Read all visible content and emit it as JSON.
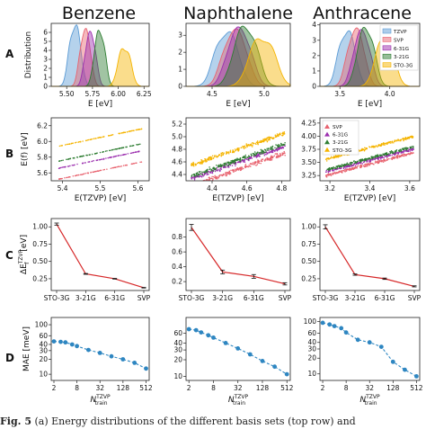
{
  "figure": {
    "columns": [
      "Benzene",
      "Naphthalene",
      "Anthracene"
    ],
    "row_labels": [
      "A",
      "B",
      "C",
      "D"
    ],
    "caption": {
      "lead": "Fig. 5",
      "text": "(a) Energy distributions of the different basis sets (top row) and"
    }
  },
  "colors": {
    "TZVP": "#5b9bd5",
    "SVP": "#e8636f",
    "6-31G": "#9b2fae",
    "3-21G": "#2e7d32",
    "STO-3G": "#f5b400",
    "mae": "#2e86c1",
    "delta": "#d62728"
  },
  "chart_data": [
    {
      "type": "area",
      "panel": "A",
      "molecule": "Benzene",
      "xlabel": "E [eV]",
      "ylabel": "Distribution",
      "xlim": [
        5.35,
        6.3
      ],
      "ylim": [
        0,
        7
      ],
      "xticks": [
        "5.50",
        "5.75",
        "6.00",
        "6.25"
      ],
      "yticks": [
        "0",
        "1",
        "2",
        "3",
        "4",
        "5",
        "6"
      ],
      "series": [
        {
          "name": "TZVP",
          "center": 5.58,
          "width": 0.06,
          "peak": 6.6
        },
        {
          "name": "SVP",
          "center": 5.68,
          "width": 0.055,
          "peak": 6.1
        },
        {
          "name": "6-31G",
          "center": 5.73,
          "width": 0.055,
          "peak": 5.8
        },
        {
          "name": "3-21G",
          "center": 5.82,
          "width": 0.055,
          "peak": 6.0
        },
        {
          "name": "STO-3G",
          "center": 6.06,
          "width": 0.065,
          "peak": 4.2
        }
      ]
    },
    {
      "type": "area",
      "panel": "A",
      "molecule": "Naphthalene",
      "xlabel": "E [eV]",
      "ylabel": "",
      "xlim": [
        4.25,
        5.25
      ],
      "ylim": [
        0,
        3.7
      ],
      "xticks": [
        "4.5",
        "5.0"
      ],
      "yticks": [
        "0",
        "1",
        "2",
        "3"
      ],
      "series": [
        {
          "name": "TZVP",
          "center": 4.64,
          "width": 0.12,
          "peak": 3.1
        },
        {
          "name": "SVP",
          "center": 4.72,
          "width": 0.12,
          "peak": 3.2
        },
        {
          "name": "6-31G",
          "center": 4.76,
          "width": 0.12,
          "peak": 3.3
        },
        {
          "name": "3-21G",
          "center": 4.82,
          "width": 0.12,
          "peak": 3.4
        },
        {
          "name": "STO-3G",
          "center": 4.98,
          "width": 0.13,
          "peak": 2.8
        }
      ]
    },
    {
      "type": "area",
      "panel": "A",
      "molecule": "Anthracene",
      "xlabel": "E [eV]",
      "ylabel": "",
      "xlim": [
        3.3,
        4.3
      ],
      "ylim": [
        0,
        4.1
      ],
      "xticks": [
        "3.5",
        "4.0"
      ],
      "yticks": [
        "0",
        "1",
        "2",
        "3",
        "4"
      ],
      "legend": "top-right",
      "series": [
        {
          "name": "TZVP",
          "center": 3.57,
          "width": 0.09,
          "peak": 3.5
        },
        {
          "name": "SVP",
          "center": 3.66,
          "width": 0.09,
          "peak": 3.6
        },
        {
          "name": "6-31G",
          "center": 3.72,
          "width": 0.09,
          "peak": 3.5
        },
        {
          "name": "3-21G",
          "center": 3.76,
          "width": 0.09,
          "peak": 3.7
        },
        {
          "name": "STO-3G",
          "center": 3.95,
          "width": 0.1,
          "peak": 3.0
        }
      ]
    },
    {
      "type": "scatter",
      "panel": "B",
      "molecule": "Benzene",
      "xlabel": "E(TZVP) [eV]",
      "ylabel": "E(f) [eV]",
      "xlim": [
        5.37,
        5.63
      ],
      "ylim": [
        5.5,
        6.3
      ],
      "xticks": [
        "5.4",
        "5.5",
        "5.6"
      ],
      "yticks": [
        "5.6",
        "5.8",
        "6.0",
        "6.2"
      ],
      "xrange": [
        5.39,
        5.61
      ],
      "spread": 0.004,
      "series": [
        {
          "name": "SVP",
          "slope": 1.0,
          "intercept": 0.13
        },
        {
          "name": "6-31G",
          "slope": 1.0,
          "intercept": 0.27
        },
        {
          "name": "3-21G",
          "slope": 1.0,
          "intercept": 0.36
        },
        {
          "name": "STO-3G",
          "slope": 1.0,
          "intercept": 0.55
        }
      ]
    },
    {
      "type": "scatter",
      "panel": "B",
      "molecule": "Naphthalene",
      "xlabel": "E(TZVP) [eV]",
      "ylabel": "",
      "xlim": [
        4.25,
        4.85
      ],
      "ylim": [
        4.3,
        5.3
      ],
      "xticks": [
        "4.4",
        "4.6",
        "4.8"
      ],
      "yticks": [
        "4.4",
        "4.6",
        "4.8",
        "5.0",
        "5.2"
      ],
      "xrange": [
        4.28,
        4.82
      ],
      "spread": 0.045,
      "series": [
        {
          "name": "SVP",
          "slope": 0.95,
          "intercept": 0.16
        },
        {
          "name": "6-31G",
          "slope": 0.95,
          "intercept": 0.27
        },
        {
          "name": "3-21G",
          "slope": 0.95,
          "intercept": 0.31
        },
        {
          "name": "STO-3G",
          "slope": 0.95,
          "intercept": 0.48
        }
      ]
    },
    {
      "type": "scatter",
      "panel": "B",
      "molecule": "Anthracene",
      "xlabel": "E(TZVP) [eV]",
      "ylabel": "",
      "xlim": [
        3.15,
        3.65
      ],
      "ylim": [
        3.15,
        4.35
      ],
      "xticks": [
        "3.2",
        "3.4",
        "3.6"
      ],
      "yticks": [
        "3.25",
        "3.50",
        "3.75",
        "4.00",
        "4.25"
      ],
      "xrange": [
        3.18,
        3.62
      ],
      "spread": 0.035,
      "legend": "upper-left",
      "series": [
        {
          "name": "SVP",
          "slope": 1.0,
          "intercept": 0.07
        },
        {
          "name": "6-31G",
          "slope": 1.0,
          "intercept": 0.14
        },
        {
          "name": "3-21G",
          "slope": 1.0,
          "intercept": 0.18
        },
        {
          "name": "STO-3G",
          "slope": 1.0,
          "intercept": 0.38
        }
      ]
    },
    {
      "type": "line",
      "panel": "C",
      "molecule": "Benzene",
      "ylabel": "ΔE_f^TZVP [eV]",
      "categories": [
        "STO-3G",
        "3-21G",
        "6-31G",
        "SVP"
      ],
      "values": [
        1.04,
        0.32,
        0.25,
        0.12
      ],
      "errors": [
        0.015,
        0.006,
        0.005,
        0.004
      ],
      "ylim": [
        0.08,
        1.12
      ],
      "yticks": [
        "0.25",
        "0.50",
        "0.75",
        "1.00"
      ]
    },
    {
      "type": "line",
      "panel": "C",
      "molecule": "Naphthalene",
      "ylabel": "",
      "categories": [
        "STO-3G",
        "3-21G",
        "6-31G",
        "SVP"
      ],
      "values": [
        0.93,
        0.33,
        0.27,
        0.17
      ],
      "errors": [
        0.04,
        0.025,
        0.025,
        0.015
      ],
      "ylim": [
        0.08,
        1.05
      ],
      "yticks": [
        "0.2",
        "0.4",
        "0.6",
        "0.8"
      ]
    },
    {
      "type": "line",
      "panel": "C",
      "molecule": "Anthracene",
      "ylabel": "",
      "categories": [
        "STO-3G",
        "3-21G",
        "6-31G",
        "SVP"
      ],
      "values": [
        1.0,
        0.31,
        0.25,
        0.14
      ],
      "errors": [
        0.03,
        0.01,
        0.01,
        0.008
      ],
      "ylim": [
        0.08,
        1.12
      ],
      "yticks": [
        "0.25",
        "0.50",
        "0.75",
        "1.00"
      ]
    },
    {
      "type": "line",
      "panel": "D",
      "molecule": "Benzene",
      "xlabel": "N_train^TZVP",
      "ylabel": "MAE [meV]",
      "yscale": "log",
      "x": [
        2,
        3,
        4,
        6,
        8,
        16,
        32,
        64,
        128,
        256,
        512
      ],
      "values": [
        46,
        45,
        44,
        40,
        37,
        31,
        27,
        23,
        20,
        17,
        13
      ],
      "xticks": [
        "2",
        "8",
        "32",
        "128",
        "512"
      ],
      "ylim": [
        7.5,
        140
      ],
      "yticks": [
        "10",
        "20",
        "30",
        "40",
        "60",
        "100"
      ]
    },
    {
      "type": "line",
      "panel": "D",
      "molecule": "Naphthalene",
      "xlabel": "N_train^TZVP",
      "ylabel": "",
      "yscale": "log",
      "x": [
        2,
        3,
        4,
        6,
        8,
        16,
        32,
        64,
        128,
        256,
        512
      ],
      "values": [
        71,
        68,
        62,
        55,
        50,
        40,
        32,
        25,
        19,
        15,
        11
      ],
      "xticks": [
        "2",
        "8",
        "32",
        "128",
        "512"
      ],
      "ylim": [
        8.5,
        115
      ],
      "yticks": [
        "10",
        "20",
        "30",
        "40",
        "60"
      ]
    },
    {
      "type": "line",
      "panel": "D",
      "molecule": "Anthracene",
      "xlabel": "N_train^TZVP",
      "ylabel": "",
      "yscale": "log",
      "x": [
        2,
        3,
        4,
        6,
        8,
        16,
        32,
        64,
        128,
        256,
        512
      ],
      "values": [
        95,
        88,
        82,
        75,
        62,
        45,
        40,
        33,
        17,
        12,
        9
      ],
      "xticks": [
        "2",
        "8",
        "32",
        "128",
        "512"
      ],
      "ylim": [
        7.5,
        120
      ],
      "yticks": [
        "10",
        "20",
        "30",
        "40",
        "60",
        "100"
      ]
    }
  ]
}
